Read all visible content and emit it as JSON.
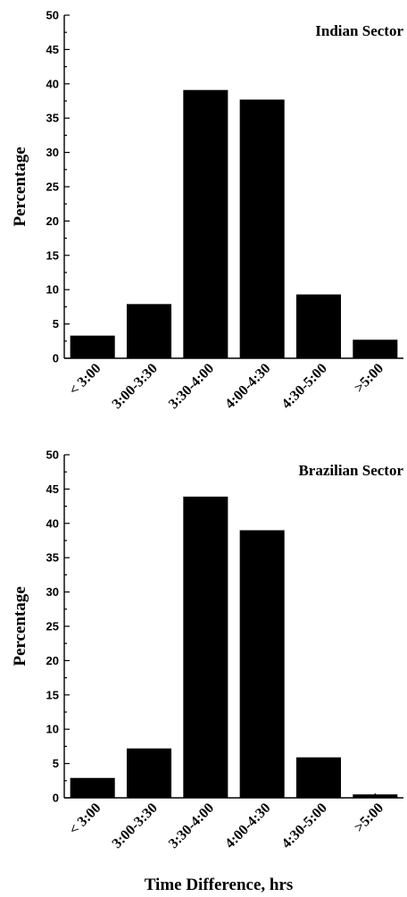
{
  "colors": {
    "bar": "#000000",
    "axis": "#000000",
    "background": "#ffffff"
  },
  "chart_data": [
    {
      "type": "bar",
      "title": "Indian Sector",
      "xlabel": "",
      "ylabel": "Percentage",
      "ylim": [
        0,
        50
      ],
      "yticks": [
        0,
        5,
        10,
        15,
        20,
        25,
        30,
        35,
        40,
        45,
        50
      ],
      "categories": [
        "< 3:00",
        "3:00-3:30",
        "3:30-4:00",
        "4:00-4:30",
        "4:30-5:00",
        ">5:00"
      ],
      "values": [
        3.3,
        7.9,
        39.1,
        37.7,
        9.3,
        2.7
      ],
      "grid": false,
      "legend": "none",
      "title_placement": "top-right"
    },
    {
      "type": "bar",
      "title": "Brazilian Sector",
      "xlabel": "Time Difference, hrs",
      "ylabel": "Percentage",
      "ylim": [
        0,
        50
      ],
      "yticks": [
        0,
        5,
        10,
        15,
        20,
        25,
        30,
        35,
        40,
        45,
        50
      ],
      "categories": [
        "< 3:00",
        "3:00-3:30",
        "3:30-4:00",
        "4:00-4:30",
        "4:30-5:00",
        ">5:00"
      ],
      "values": [
        2.9,
        7.2,
        43.9,
        39.0,
        5.9,
        0.5
      ],
      "grid": false,
      "legend": "none",
      "title_placement": "top-right"
    }
  ]
}
